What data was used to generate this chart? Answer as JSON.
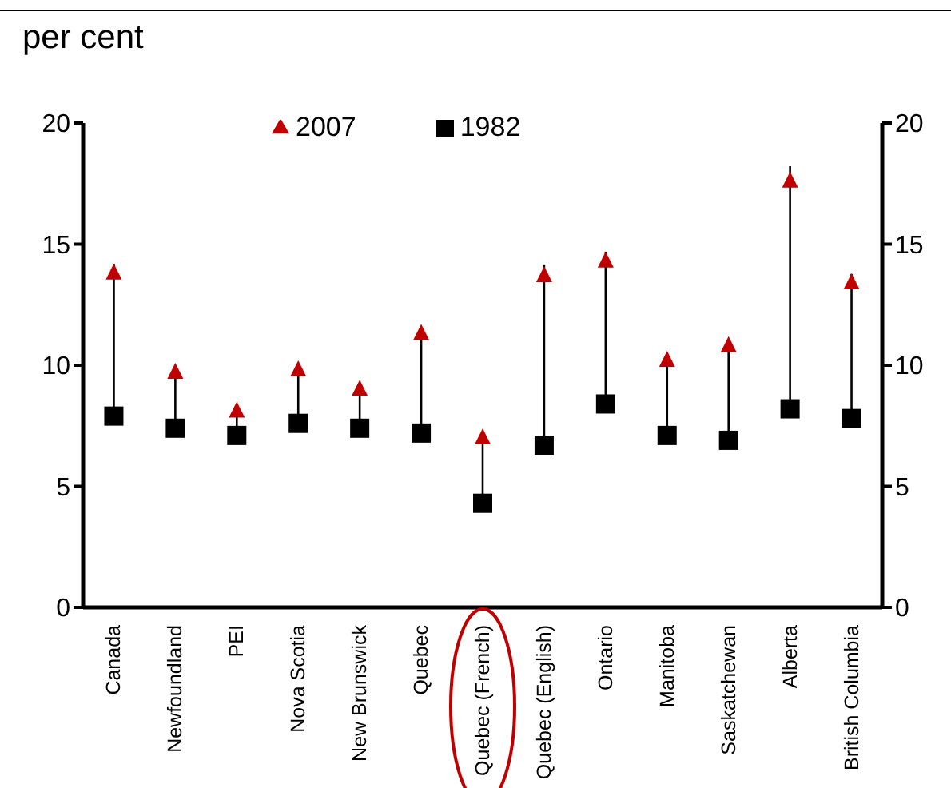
{
  "chart_data": {
    "type": "scatter",
    "title": "per cent",
    "categories": [
      "Canada",
      "Newfoundland",
      "PEI",
      "Nova Scotia",
      "New Brunswick",
      "Quebec",
      "Quebec (French)",
      "Quebec (English)",
      "Ontario",
      "Manitoba",
      "Saskatchewan",
      "Alberta",
      "British Columbia"
    ],
    "series": [
      {
        "name": "2007",
        "color": "#c00000",
        "marker": "triangle",
        "values": [
          13.8,
          9.7,
          8.1,
          9.8,
          9.0,
          11.3,
          7.0,
          13.7,
          14.3,
          10.2,
          10.8,
          17.6,
          13.4
        ]
      },
      {
        "name": "1982",
        "color": "#000000",
        "marker": "square",
        "values": [
          7.9,
          7.4,
          7.1,
          7.6,
          7.4,
          7.2,
          4.3,
          6.7,
          8.4,
          7.1,
          6.9,
          8.2,
          7.8
        ]
      }
    ],
    "ylim": [
      0,
      20
    ],
    "yticks": [
      0,
      5,
      10,
      15,
      20
    ],
    "y2lim": [
      0,
      20
    ],
    "y2ticks": [
      0,
      5,
      10,
      15,
      20
    ],
    "legend": "top"
  }
}
